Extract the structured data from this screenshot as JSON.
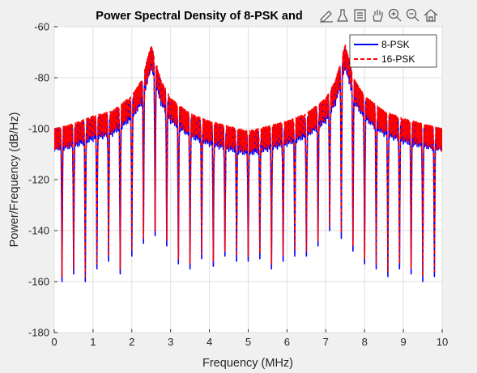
{
  "chart_data": {
    "type": "line",
    "title": "Power Spectral Density of 8-PSK and",
    "xlabel": "Frequency (MHz)",
    "ylabel": "Power/Frequency (dB/Hz)",
    "xlim": [
      0,
      10
    ],
    "ylim": [
      -180,
      -60
    ],
    "xticks": [
      0,
      1,
      2,
      3,
      4,
      5,
      6,
      7,
      8,
      9,
      10
    ],
    "yticks": [
      -180,
      -160,
      -140,
      -120,
      -100,
      -80,
      -60
    ],
    "grid": true,
    "legend_position": "top-right",
    "series": [
      {
        "name": "8-PSK",
        "color": "#0000ff",
        "style": "solid",
        "x": [
          0,
          0.5,
          1.0,
          1.5,
          2.0,
          2.25,
          2.5,
          2.75,
          3.0,
          3.5,
          4.0,
          4.5,
          5.0,
          5.5,
          6.0,
          6.5,
          7.0,
          7.25,
          7.5,
          7.75,
          8.0,
          8.5,
          9.0,
          9.5,
          10.0
        ],
        "values": [
          -100,
          -99,
          -96,
          -94,
          -88,
          -82,
          -68,
          -82,
          -89,
          -95,
          -98,
          -100,
          -102,
          -100,
          -98,
          -95,
          -89,
          -82,
          -68,
          -82,
          -88,
          -94,
          -97,
          -99,
          -100
        ]
      },
      {
        "name": "16-PSK",
        "color": "#ff0000",
        "style": "dashed",
        "x": [
          0,
          0.5,
          1.0,
          1.5,
          2.0,
          2.25,
          2.5,
          2.75,
          3.0,
          3.5,
          4.0,
          4.5,
          5.0,
          5.5,
          6.0,
          6.5,
          7.0,
          7.25,
          7.5,
          7.75,
          8.0,
          8.5,
          9.0,
          9.5,
          10.0
        ],
        "values": [
          -100,
          -98,
          -95,
          -93,
          -87,
          -81,
          -67,
          -81,
          -88,
          -94,
          -97,
          -99,
          -101,
          -99,
          -97,
          -94,
          -88,
          -81,
          -67,
          -81,
          -87,
          -93,
          -96,
          -98,
          -100
        ]
      }
    ],
    "null_dips": {
      "x": [
        0.2,
        0.5,
        0.8,
        1.1,
        1.4,
        1.7,
        2.0,
        2.3,
        2.6,
        2.9,
        3.2,
        3.5,
        3.8,
        4.1,
        4.4,
        4.7,
        5.0,
        5.3,
        5.6,
        5.9,
        6.2,
        6.5,
        6.8,
        7.1,
        7.4,
        7.7,
        8.0,
        8.3,
        8.6,
        8.9,
        9.2,
        9.5,
        9.8
      ],
      "values": [
        -160,
        -157,
        -160,
        -155,
        -152,
        -157,
        -150,
        -145,
        -142,
        -146,
        -153,
        -155,
        -151,
        -154,
        -150,
        -152,
        -152,
        -151,
        -155,
        -152,
        -150,
        -150,
        -146,
        -140,
        -143,
        -148,
        -153,
        -155,
        -158,
        -155,
        -157,
        -160,
        -158
      ]
    },
    "toolbar_icons": [
      "brush-icon",
      "paint-icon",
      "datatip-icon",
      "pan-icon",
      "zoom-in-icon",
      "zoom-out-icon",
      "home-icon"
    ]
  }
}
